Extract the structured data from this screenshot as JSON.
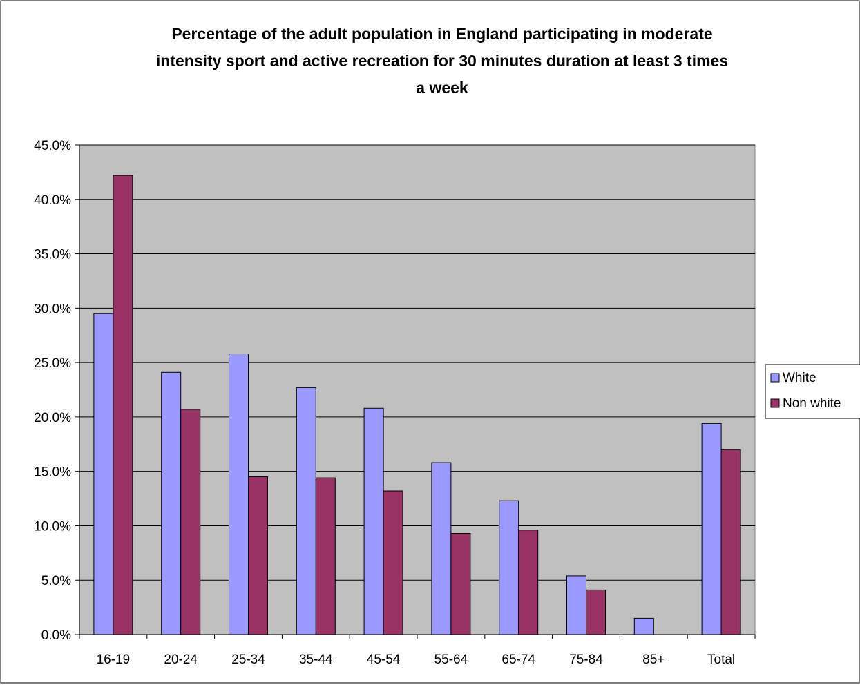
{
  "chart_data": {
    "type": "bar",
    "title_lines": [
      "Percentage of the adult population in England participating in moderate",
      "intensity sport and active recreation for 30 minutes duration at least 3 times",
      "a week"
    ],
    "xlabel": "",
    "ylabel": "",
    "categories": [
      "16-19",
      "20-24",
      "25-34",
      "35-44",
      "45-54",
      "55-64",
      "65-74",
      "75-84",
      "85+",
      "Total"
    ],
    "series": [
      {
        "name": "White",
        "color": "#9999ff",
        "values": [
          29.5,
          24.1,
          25.8,
          22.7,
          20.8,
          15.8,
          12.3,
          5.4,
          1.5,
          19.4
        ]
      },
      {
        "name": "Non white",
        "color": "#993366",
        "values": [
          42.2,
          20.7,
          14.5,
          14.4,
          13.2,
          9.3,
          9.6,
          4.1,
          0,
          17.0
        ]
      }
    ],
    "ylim": [
      0,
      45
    ],
    "yticks": [
      0,
      5,
      10,
      15,
      20,
      25,
      30,
      35,
      40,
      45
    ],
    "ytick_labels": [
      "0.0%",
      "5.0%",
      "10.0%",
      "15.0%",
      "20.0%",
      "25.0%",
      "30.0%",
      "35.0%",
      "40.0%",
      "45.0%"
    ],
    "grid": true,
    "legend_position": "right",
    "plot_background": "#c0c0c0"
  }
}
